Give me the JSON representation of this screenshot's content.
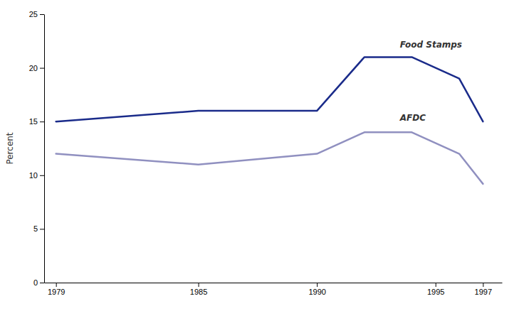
{
  "chart_data": {
    "type": "line",
    "ylabel": "Percent",
    "x": [
      1979,
      1985,
      1990,
      1992,
      1994,
      1996,
      1997
    ],
    "series": [
      {
        "color": "#1a2b8a",
        "values": [
          15.0,
          16.0,
          16.0,
          21.0,
          21.0,
          19.0,
          15.0
        ]
      },
      {
        "color": "#9090c0",
        "values": [
          12.0,
          11.0,
          12.0,
          14.0,
          14.0,
          12.0,
          9.2
        ]
      }
    ],
    "xlim": [
      1978.5,
      1997.8
    ],
    "xticks": [
      1979,
      1985,
      1990,
      1995,
      1997
    ],
    "ylim": [
      0,
      25
    ],
    "yticks": [
      0,
      5,
      10,
      15,
      20,
      25
    ],
    "grid": false,
    "annotations": [
      {
        "text": "Food Stamps",
        "x": 1993.5,
        "y": 21.9
      },
      {
        "text": "AFDC",
        "x": 1993.5,
        "y": 15.1
      }
    ]
  }
}
